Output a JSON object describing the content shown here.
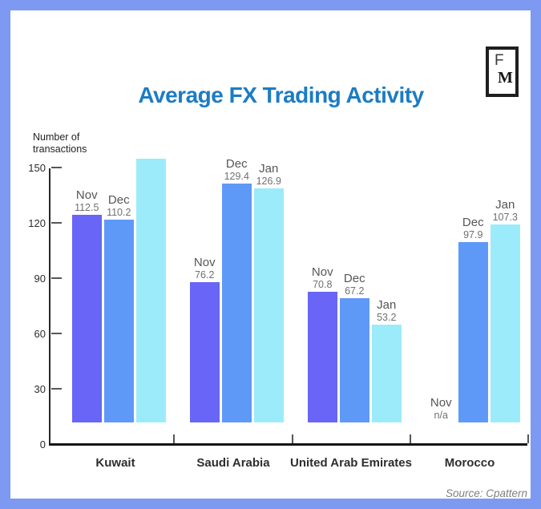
{
  "title": "Average FX Trading Activity",
  "logo": {
    "top_letter": "F",
    "bottom_letter": "M"
  },
  "y_axis_label_line1": "Number of",
  "y_axis_label_line2": "transactions",
  "source": "Source: Cpattern",
  "colors": {
    "frame_border": "#7e99f2",
    "title": "#1c7cc3",
    "nov_bar": "#6865f7",
    "dec_bar": "#5f99f8",
    "jan_bar": "#9cebfb"
  },
  "chart_data": {
    "type": "bar",
    "title": "Average FX Trading Activity",
    "ylabel": "Number of transactions",
    "ylim": [
      0,
      150
    ],
    "yticks": [
      0,
      30,
      60,
      90,
      120,
      150
    ],
    "grid": false,
    "legend": "none (months labeled above each bar)",
    "categories": [
      "Kuwait",
      "Saudi Arabia",
      "United Arab Emirates",
      "Morocco"
    ],
    "series": [
      {
        "name": "Nov",
        "color": "#6865f7",
        "values": [
          112.5,
          76.2,
          70.8,
          null
        ],
        "bar_labels": [
          "112.5",
          "76.2",
          "70.8",
          "n/a"
        ]
      },
      {
        "name": "Dec",
        "color": "#5f99f8",
        "values": [
          110.2,
          129.4,
          67.2,
          97.9
        ],
        "bar_labels": [
          "110.2",
          "129.4",
          "67.2",
          "97.9"
        ]
      },
      {
        "name": "Jan",
        "color": "#9cebfb",
        "values": [
          143,
          126.9,
          53.2,
          107.3
        ],
        "bar_labels": [
          "",
          "126.9",
          "53.2",
          "107.3"
        ]
      }
    ],
    "note": "Kuwait Jan bar (~143) shown without data label; Morocco Nov shown as n/a with no bar"
  }
}
